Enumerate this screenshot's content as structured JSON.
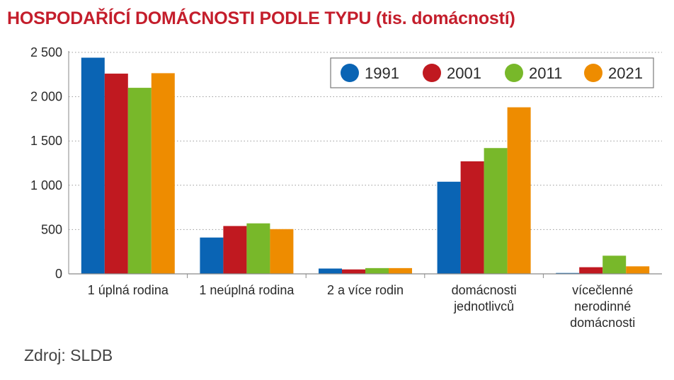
{
  "title": "HOSPODAŘÍCÍ DOMÁCNOSTI PODLE TYPU (tis. domácností)",
  "source": "Zdroj: SLDB",
  "chart_data": {
    "type": "bar",
    "title": "HOSPODAŘÍCÍ DOMÁCNOSTI PODLE TYPU (tis. domácností)",
    "xlabel": "",
    "ylabel": "",
    "ylim": [
      0,
      2500
    ],
    "yticks": [
      0,
      500,
      1000,
      1500,
      2000,
      2500
    ],
    "ytick_labels": [
      "0",
      "500",
      "1 000",
      "1 500",
      "2 000",
      "2 500"
    ],
    "grid": "horizontal dotted",
    "legend_position": "top-right",
    "categories": [
      [
        "1 úplná rodina"
      ],
      [
        "1 neúplná rodina"
      ],
      [
        "2 a více rodin"
      ],
      [
        "domácnosti",
        "jednotlivců"
      ],
      [
        "vícečlenné",
        "nerodinné",
        "domácnosti"
      ]
    ],
    "series": [
      {
        "name": "1991",
        "color": "#0a64b4",
        "values": [
          2440,
          410,
          60,
          1040,
          10
        ]
      },
      {
        "name": "2001",
        "color": "#c01920",
        "values": [
          2260,
          540,
          50,
          1270,
          75
        ]
      },
      {
        "name": "2011",
        "color": "#78b82a",
        "values": [
          2100,
          570,
          65,
          1420,
          205
        ]
      },
      {
        "name": "2021",
        "color": "#ee8c00",
        "values": [
          2265,
          505,
          65,
          1880,
          85
        ]
      }
    ]
  }
}
